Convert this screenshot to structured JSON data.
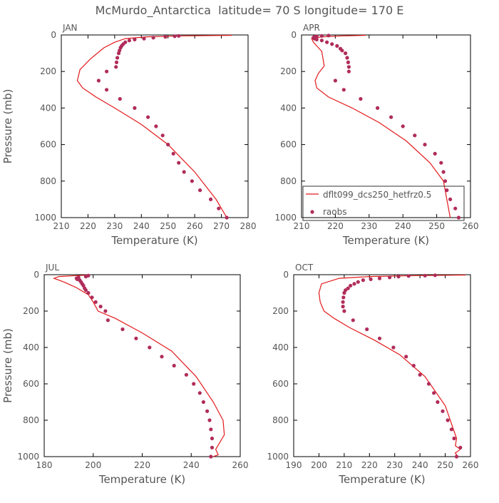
{
  "title": "McMurdo_Antarctica  latitude= 70 S longitude= 170 E",
  "colors": {
    "model": "#e31a1c",
    "obs": "#b02c5a",
    "axis": "#000000",
    "text": "#555555"
  },
  "legend": {
    "model_label": "dflt099_dcs250_hetfrz0.5",
    "obs_label": "raobs",
    "panel": "APR"
  },
  "chart_data": [
    {
      "type": "line",
      "panel_label": "JAN",
      "xlabel": "Temperature (K)",
      "ylabel": "Pressure (mb)",
      "xlim": [
        210,
        280
      ],
      "ylim": [
        1000,
        0
      ],
      "xticks": [
        210,
        220,
        230,
        240,
        250,
        260,
        270,
        280
      ],
      "yticks": [
        0,
        200,
        400,
        600,
        800,
        1000
      ],
      "series": [
        {
          "name": "dflt099_dcs250_hetfrz0.5",
          "kind": "line",
          "x": [
            274,
            255,
            242,
            234,
            230,
            226,
            221,
            217,
            216,
            218,
            223,
            230,
            240,
            250,
            260,
            268,
            272
          ],
          "y": [
            2,
            5,
            10,
            20,
            40,
            70,
            130,
            190,
            250,
            290,
            340,
            400,
            490,
            600,
            750,
            900,
            1000
          ]
        },
        {
          "name": "raobs",
          "kind": "scatter",
          "x": [
            272,
            269,
            266,
            262,
            259,
            256,
            254,
            252,
            250,
            248,
            245.5,
            242.5,
            237.5,
            232,
            227,
            224,
            227,
            230.5,
            230.7,
            231,
            231.5,
            231.8,
            232.2,
            232.6,
            233.2,
            234,
            235.5,
            237.5,
            241,
            244.5,
            249,
            252.5,
            254
          ],
          "y": [
            1000,
            950,
            900,
            850,
            800,
            750,
            700,
            650,
            600,
            550,
            500,
            450,
            400,
            350,
            300,
            250,
            200,
            175,
            150,
            125,
            100,
            85,
            70,
            60,
            50,
            40,
            30,
            25,
            20,
            15,
            10,
            7,
            5
          ]
        }
      ]
    },
    {
      "type": "line",
      "panel_label": "APR",
      "xlabel": "Temperature (K)",
      "ylabel": "",
      "xlim": [
        210,
        260
      ],
      "ylim": [
        1000,
        0
      ],
      "xticks": [
        210,
        220,
        230,
        240,
        250,
        260
      ],
      "yticks": [
        0,
        200,
        400,
        600,
        800,
        1000
      ],
      "series": [
        {
          "name": "dflt099_dcs250_hetfrz0.5",
          "kind": "line",
          "x": [
            229,
            222,
            216,
            213,
            213.5,
            216,
            216.7,
            215,
            214,
            214.5,
            218,
            225,
            233,
            241,
            248,
            252,
            253,
            254
          ],
          "y": [
            2,
            5,
            10,
            20,
            40,
            90,
            170,
            210,
            250,
            290,
            340,
            400,
            480,
            580,
            700,
            800,
            900,
            1000
          ]
        },
        {
          "name": "raobs",
          "kind": "scatter",
          "x": [
            256.5,
            255.5,
            254,
            253,
            252.5,
            252,
            251.3,
            249.5,
            246.5,
            243.5,
            240,
            236.5,
            232.5,
            227.5,
            222.5,
            220,
            224,
            224,
            223.8,
            223.5,
            223,
            222,
            221.5,
            220.5,
            219,
            217.5,
            216,
            214.5,
            213.8,
            213.5,
            213.8,
            214.5,
            216,
            218
          ],
          "y": [
            1000,
            950,
            900,
            850,
            800,
            750,
            700,
            650,
            600,
            550,
            500,
            450,
            400,
            350,
            300,
            250,
            200,
            175,
            150,
            125,
            100,
            85,
            75,
            60,
            50,
            40,
            30,
            25,
            20,
            15,
            10,
            7,
            5,
            3
          ]
        }
      ]
    },
    {
      "type": "line",
      "panel_label": "JUL",
      "xlabel": "Temperature (K)",
      "ylabel": "Pressure (mb)",
      "xlim": [
        180,
        260
      ],
      "ylim": [
        1000,
        0
      ],
      "xticks": [
        180,
        200,
        220,
        240,
        260
      ],
      "yticks": [
        0,
        200,
        400,
        600,
        800,
        1000
      ],
      "series": [
        {
          "name": "dflt099_dcs250_hetfrz0.5",
          "kind": "line",
          "x": [
            198,
            193,
            186,
            184,
            188,
            193,
            198,
            200,
            202,
            209,
            220,
            232,
            242,
            249,
            253,
            253.5,
            250,
            251,
            249
          ],
          "y": [
            2,
            5,
            10,
            20,
            40,
            70,
            110,
            150,
            200,
            240,
            320,
            420,
            560,
            700,
            800,
            880,
            960,
            990,
            1000
          ]
        },
        {
          "name": "raobs",
          "kind": "scatter",
          "x": [
            248,
            248.5,
            248.5,
            248,
            247.5,
            246.5,
            245,
            243.5,
            241,
            238,
            233,
            228,
            223,
            217.5,
            212,
            206,
            205,
            203,
            201,
            199.5,
            198,
            197,
            196.5,
            196,
            195.5,
            195,
            194.5,
            193.5,
            193.2,
            194,
            197,
            198
          ],
          "y": [
            1000,
            950,
            900,
            850,
            800,
            750,
            700,
            650,
            600,
            550,
            500,
            450,
            400,
            350,
            300,
            250,
            200,
            175,
            150,
            125,
            100,
            85,
            75,
            60,
            50,
            40,
            30,
            25,
            20,
            15,
            10,
            5
          ]
        }
      ]
    },
    {
      "type": "line",
      "panel_label": "OCT",
      "xlabel": "Temperature (K)",
      "ylabel": "",
      "xlim": [
        190,
        260
      ],
      "ylim": [
        1000,
        0
      ],
      "xticks": [
        190,
        200,
        210,
        220,
        230,
        240,
        250,
        260
      ],
      "yticks": [
        0,
        200,
        400,
        600,
        800,
        1000
      ],
      "series": [
        {
          "name": "dflt099_dcs250_hetfrz0.5",
          "kind": "line",
          "x": [
            258,
            238,
            220,
            208,
            201,
            200,
            200.5,
            202,
            206,
            212,
            222,
            232,
            242,
            250,
            254.5,
            254,
            256,
            254,
            255
          ],
          "y": [
            2,
            5,
            10,
            20,
            50,
            100,
            150,
            200,
            240,
            290,
            360,
            440,
            560,
            720,
            900,
            940,
            960,
            980,
            1000
          ]
        },
        {
          "name": "raobs",
          "kind": "scatter",
          "x": [
            254.5,
            256,
            253.5,
            252.5,
            251,
            249,
            247,
            245.5,
            243.5,
            240,
            237.5,
            234.5,
            229.5,
            224,
            219,
            213.5,
            210,
            209.5,
            209.5,
            209.7,
            210,
            210.5,
            211.5,
            212.5,
            214,
            215.5,
            217.5,
            220.5,
            224,
            228,
            231.5,
            235.5,
            242,
            246
          ],
          "y": [
            1000,
            950,
            900,
            850,
            800,
            750,
            700,
            650,
            600,
            550,
            500,
            450,
            400,
            350,
            300,
            250,
            200,
            175,
            150,
            125,
            100,
            85,
            75,
            60,
            50,
            40,
            30,
            25,
            20,
            15,
            10,
            7,
            5,
            3
          ]
        }
      ]
    }
  ]
}
